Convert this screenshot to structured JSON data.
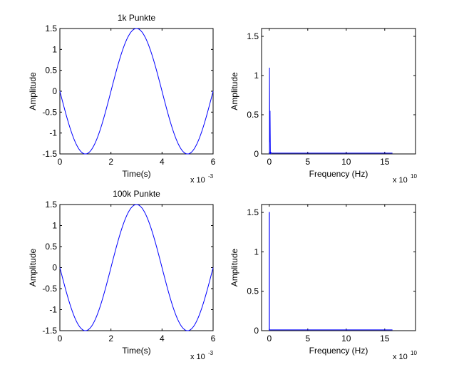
{
  "chart_data": [
    {
      "type": "line",
      "title": "1k Punkte",
      "xlabel": "Time(s)",
      "ylabel": "Amplitude",
      "x_multiplier": {
        "base": "x 10",
        "exponent": "-3"
      },
      "xlim": [
        0,
        6
      ],
      "ylim": [
        -1.5,
        1.5
      ],
      "xticks": [
        0,
        2,
        4,
        6
      ],
      "yticks": [
        -1.5,
        -1,
        -0.5,
        0,
        0.5,
        1,
        1.5
      ],
      "xtick_labels": [
        "0",
        "2",
        "4",
        "6"
      ],
      "ytick_labels": [
        "-1.5",
        "-1",
        "-0.5",
        "0",
        "0.5",
        "1",
        "1.5"
      ],
      "series": [
        {
          "curve": "sine",
          "amplitude": 1.5,
          "period": 4,
          "phase_shift": 2,
          "x_range": [
            0,
            6
          ],
          "color": "#0000ff"
        }
      ],
      "grid": false
    },
    {
      "type": "line",
      "title": "",
      "xlabel": "Frequency (Hz)",
      "ylabel": "Amplitude",
      "x_multiplier": {
        "base": "x 10",
        "exponent": "10"
      },
      "xlim": [
        -1,
        19
      ],
      "ylim": [
        0,
        1.6
      ],
      "xticks": [
        0,
        5,
        10,
        15
      ],
      "yticks": [
        0,
        0.5,
        1,
        1.5
      ],
      "xtick_labels": [
        "0",
        "5",
        "10",
        "15"
      ],
      "ytick_labels": [
        "0",
        "0.5",
        "1",
        "1.5"
      ],
      "series": [
        {
          "x": [
            0,
            0.03,
            0.03,
            0.06,
            0.06,
            0.1,
            0.1,
            0.14,
            0.14,
            0.2,
            0.3,
            16
          ],
          "y": [
            0,
            0,
            1.1,
            0.3,
            0.55,
            0.15,
            0.55,
            0.05,
            0.0,
            0.02,
            0.01,
            0.01
          ],
          "color": "#0000ff"
        }
      ],
      "grid": false
    },
    {
      "type": "line",
      "title": "100k Punkte",
      "xlabel": "Time(s)",
      "ylabel": "Amplitude",
      "x_multiplier": {
        "base": "x 10",
        "exponent": "-3"
      },
      "xlim": [
        0,
        6
      ],
      "ylim": [
        -1.5,
        1.5
      ],
      "xticks": [
        0,
        2,
        4,
        6
      ],
      "yticks": [
        -1.5,
        -1,
        -0.5,
        0,
        0.5,
        1,
        1.5
      ],
      "xtick_labels": [
        "0",
        "2",
        "4",
        "6"
      ],
      "ytick_labels": [
        "-1.5",
        "-1",
        "-0.5",
        "0",
        "0.5",
        "1",
        "1.5"
      ],
      "series": [
        {
          "curve": "sine",
          "amplitude": 1.5,
          "period": 4,
          "phase_shift": 2,
          "x_range": [
            0,
            6
          ],
          "color": "#0000ff"
        }
      ],
      "grid": false
    },
    {
      "type": "line",
      "title": "",
      "xlabel": "Frequency (Hz)",
      "ylabel": "Amplitude",
      "x_multiplier": {
        "base": "x 10",
        "exponent": "10"
      },
      "xlim": [
        -1,
        19
      ],
      "ylim": [
        0,
        1.6
      ],
      "xticks": [
        0,
        5,
        10,
        15
      ],
      "yticks": [
        0,
        0.5,
        1,
        1.5
      ],
      "xtick_labels": [
        "0",
        "5",
        "10",
        "15"
      ],
      "ytick_labels": [
        "0",
        "0.5",
        "1",
        "1.5"
      ],
      "series": [
        {
          "x": [
            0,
            0,
            0.02,
            0.02,
            0.1,
            16
          ],
          "y": [
            0,
            1.5,
            1.5,
            0.01,
            0.01,
            0.01
          ],
          "color": "#0000ff"
        }
      ],
      "grid": false
    }
  ]
}
